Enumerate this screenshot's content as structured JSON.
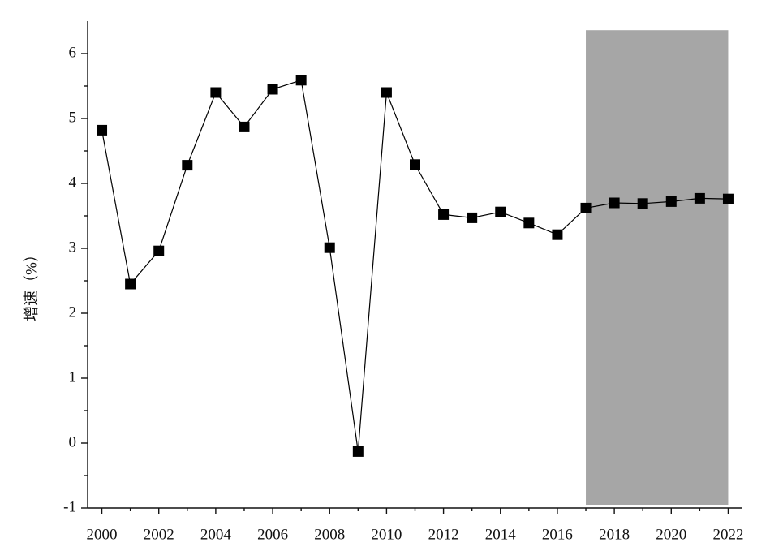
{
  "chart_data": {
    "type": "line",
    "y_label": "增速（%）",
    "x": [
      2000,
      2001,
      2002,
      2003,
      2004,
      2005,
      2006,
      2007,
      2008,
      2009,
      2010,
      2011,
      2012,
      2013,
      2014,
      2015,
      2016,
      2017,
      2018,
      2019,
      2020,
      2021,
      2022
    ],
    "series": [
      {
        "color": "#000000",
        "values": [
          4.82,
          2.45,
          2.96,
          4.28,
          5.4,
          4.87,
          5.45,
          5.59,
          3.01,
          -0.13,
          5.4,
          4.29,
          3.52,
          3.47,
          3.56,
          3.39,
          3.21,
          3.62,
          3.7,
          3.69,
          3.72,
          3.77,
          3.76
        ]
      }
    ],
    "xlim": [
      1999.5,
      2022.5
    ],
    "ylim": [
      -1,
      6.5
    ],
    "xticks": [
      2000,
      2002,
      2004,
      2006,
      2008,
      2010,
      2012,
      2014,
      2016,
      2018,
      2020,
      2022
    ],
    "xminorticks": [
      2001,
      2003,
      2005,
      2007,
      2009,
      2011,
      2013,
      2015,
      2017,
      2019,
      2021
    ],
    "yticks": [
      -1,
      0,
      1,
      2,
      3,
      4,
      5,
      6
    ],
    "yminorticks": [
      -0.5,
      0.5,
      1.5,
      2.5,
      3.5,
      4.5,
      5.5
    ],
    "highlight": {
      "xlim": [
        2017,
        2022
      ],
      "ylim": [
        -0.95,
        6.36
      ],
      "color": "#a6a6a6"
    },
    "grid": false
  }
}
